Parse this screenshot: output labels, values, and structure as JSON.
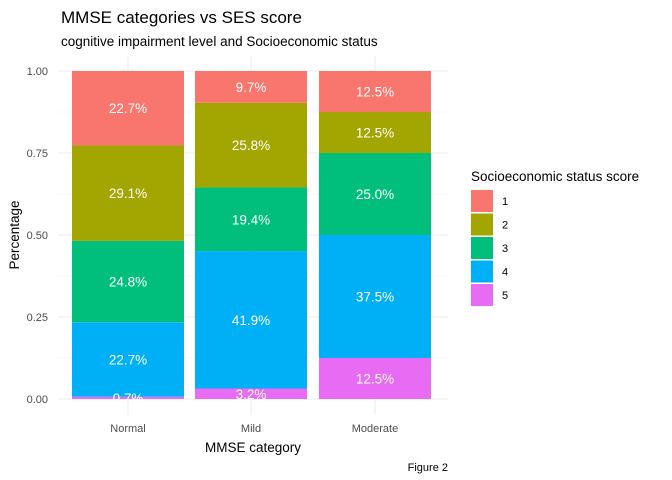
{
  "chart_data": {
    "type": "bar",
    "stacked": true,
    "title": "MMSE categories vs SES score",
    "subtitle": "cognitive impairment level and Socioeconomic status",
    "xlabel": "MMSE category",
    "ylabel": "Percentage",
    "caption": "Figure 2",
    "categories": [
      "Normal",
      "Mild",
      "Moderate"
    ],
    "ylim": [
      0,
      1
    ],
    "yticks": [
      "0.00",
      "0.25",
      "0.50",
      "0.75",
      "1.00"
    ],
    "ytick_values": [
      0,
      0.25,
      0.5,
      0.75,
      1.0
    ],
    "grid": true,
    "legend": {
      "title": "Socioeconomic status score",
      "position": "right"
    },
    "series": [
      {
        "name": "1",
        "color": "#F8766D",
        "values": [
          0.227,
          0.097,
          0.125
        ],
        "labels": [
          "22.7%",
          "9.7%",
          "12.5%"
        ]
      },
      {
        "name": "2",
        "color": "#A3A500",
        "values": [
          0.291,
          0.258,
          0.125
        ],
        "labels": [
          "29.1%",
          "25.8%",
          "12.5%"
        ]
      },
      {
        "name": "3",
        "color": "#00BF7D",
        "values": [
          0.248,
          0.194,
          0.25
        ],
        "labels": [
          "24.8%",
          "19.4%",
          "25.0%"
        ]
      },
      {
        "name": "4",
        "color": "#00B0F6",
        "values": [
          0.227,
          0.419,
          0.375
        ],
        "labels": [
          "22.7%",
          "41.9%",
          "37.5%"
        ]
      },
      {
        "name": "5",
        "color": "#E76BF3",
        "values": [
          0.007,
          0.032,
          0.125
        ],
        "labels": [
          "0.7%",
          "3.2%",
          "12.5%"
        ]
      }
    ]
  }
}
